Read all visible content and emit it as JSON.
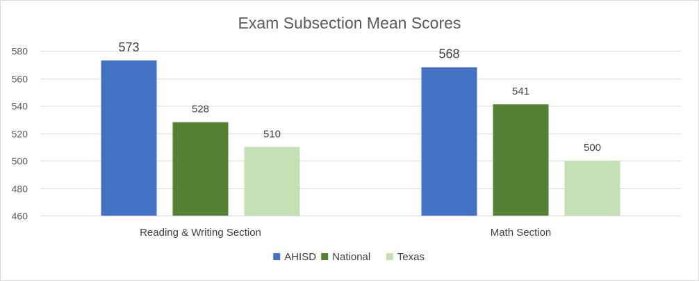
{
  "chart_data": {
    "type": "bar",
    "title": "Exam Subsection Mean Scores",
    "categories": [
      "Reading & Writing Section",
      "Math Section"
    ],
    "series": [
      {
        "name": "AHISD",
        "values": [
          573,
          568
        ],
        "color": "#4472c4"
      },
      {
        "name": "National",
        "values": [
          528,
          541
        ],
        "color": "#548235"
      },
      {
        "name": "Texas",
        "values": [
          510,
          500
        ],
        "color": "#c5e0b4"
      }
    ],
    "ylim": [
      460,
      580
    ],
    "yticks": [
      460,
      480,
      500,
      520,
      540,
      560,
      580
    ],
    "grid": true,
    "legend": "bottom"
  }
}
